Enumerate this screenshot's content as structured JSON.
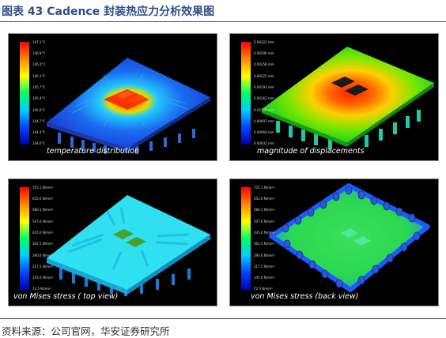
{
  "page": {
    "title": "图表 43 Cadence 封装热应力分析效果图",
    "source": "资料来源：公司官网，华安证券研究所"
  },
  "panels": [
    {
      "caption": "temperature distribution",
      "legend_ticks": [
        "147.1°C",
        "146.8°C",
        "146.4°C",
        "146.1°C",
        "145.7°C",
        "145.4°C",
        "145.0°C",
        "144.7°C",
        "144.3°C",
        "144.0°C"
      ]
    },
    {
      "caption": "magnitude of displacements",
      "legend_ticks": [
        "0.00322 mm",
        "0.00290 mm",
        "0.00258 mm",
        "0.00225 mm",
        "0.00193 mm",
        "0.00161 mm",
        "0.00129 mm",
        "0.00097 mm",
        "0.00064 mm",
        "0.00032 mm"
      ]
    },
    {
      "caption": "von Mises stress ( top view)",
      "legend_ticks": [
        "725.1 N/mm²",
        "652.6 N/mm²",
        "580.1 N/mm²",
        "507.6 N/mm²",
        "435.0 N/mm²",
        "362.5 N/mm²",
        "290.0 N/mm²",
        "217.5 N/mm²",
        "145.0 N/mm²",
        "72.5 N/mm²"
      ]
    },
    {
      "caption": "von Mises stress (back view)",
      "legend_ticks": [
        "725.1 N/mm²",
        "652.6 N/mm²",
        "580.1 N/mm²",
        "507.6 N/mm²",
        "435.0 N/mm²",
        "362.5 N/mm²",
        "290.0 N/mm²",
        "217.5 N/mm²",
        "145.0 N/mm²",
        "72.5 N/mm²"
      ]
    }
  ]
}
